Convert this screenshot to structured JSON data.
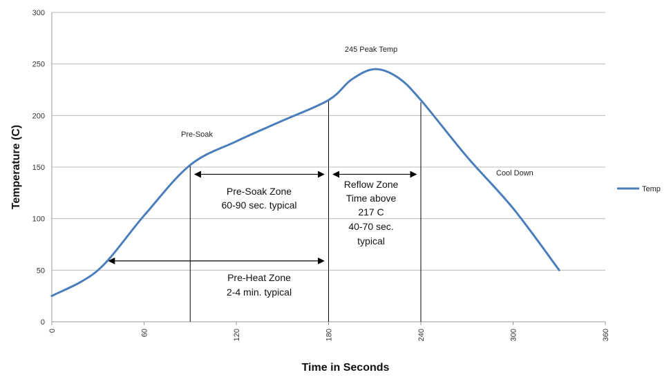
{
  "chart_data": {
    "type": "line",
    "title": "",
    "xlabel": "Time in Seconds",
    "ylabel": "Temperature (C)",
    "xlim": [
      0,
      360
    ],
    "ylim": [
      0,
      300
    ],
    "xticks": [
      "0",
      "60",
      "120",
      "180",
      "240",
      "300",
      "360"
    ],
    "yticks": [
      "0",
      "50",
      "100",
      "150",
      "200",
      "250",
      "300"
    ],
    "grid": "horizontal",
    "legend_position": "right",
    "series": [
      {
        "name": "Temp",
        "color": "#4a7ebb",
        "x": [
          0,
          30,
          60,
          90,
          120,
          150,
          180,
          195,
          210,
          225,
          240,
          270,
          300,
          330
        ],
        "y": [
          25,
          50,
          103,
          152,
          175,
          195,
          215,
          235,
          245,
          237,
          215,
          160,
          110,
          50
        ]
      }
    ],
    "annotations": {
      "peak": "245 Peak Temp",
      "pre_soak": "Pre-Soak",
      "cool_down": "Cool Down",
      "pre_soak_zone": [
        "Pre-Soak Zone",
        "60-90 sec. typical"
      ],
      "reflow_zone": [
        "Reflow Zone",
        "Time above",
        "217 C",
        "40-70 sec.",
        "typical"
      ],
      "pre_heat_zone": [
        "Pre-Heat Zone",
        "2-4 min.  typical"
      ]
    }
  }
}
